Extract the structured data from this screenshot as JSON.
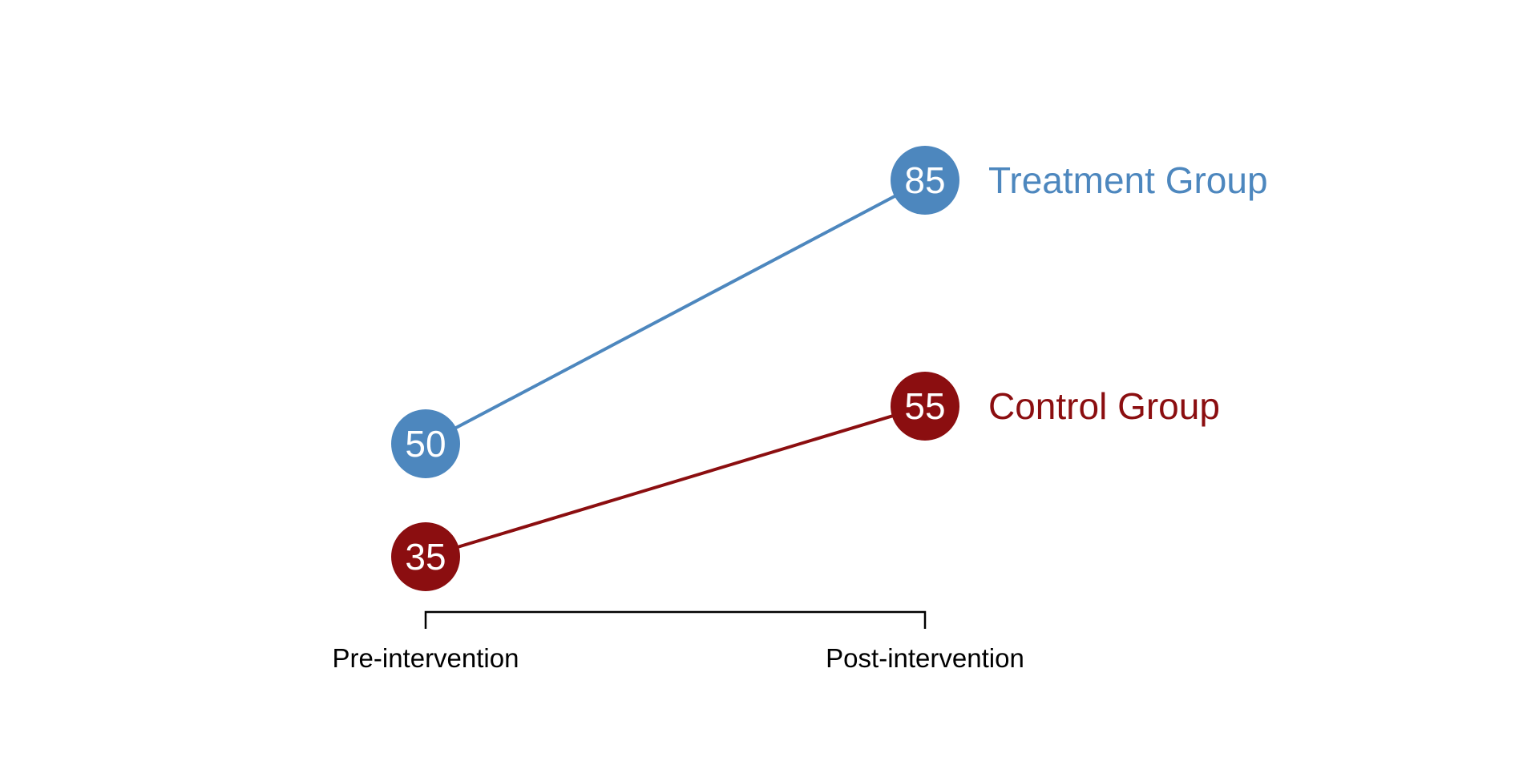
{
  "chart_data": {
    "type": "line",
    "subtype": "slopegraph",
    "title": "",
    "categories": [
      "Pre-intervention",
      "Post-intervention"
    ],
    "series": [
      {
        "name": "Treatment Group",
        "values": [
          50,
          85
        ],
        "color": "#4D87BE"
      },
      {
        "name": "Control Group",
        "values": [
          35,
          55
        ],
        "color": "#8B0E10"
      }
    ],
    "value_label_color": "#FFFFFF",
    "axis": {
      "style": "bracket-with-end-ticks",
      "color": "#000000",
      "tick_label_color": "#000000"
    },
    "background": "#FFFFFF",
    "grid": false,
    "legend_position": "right-of-post-points",
    "ylim_implied": [
      30,
      90
    ]
  }
}
